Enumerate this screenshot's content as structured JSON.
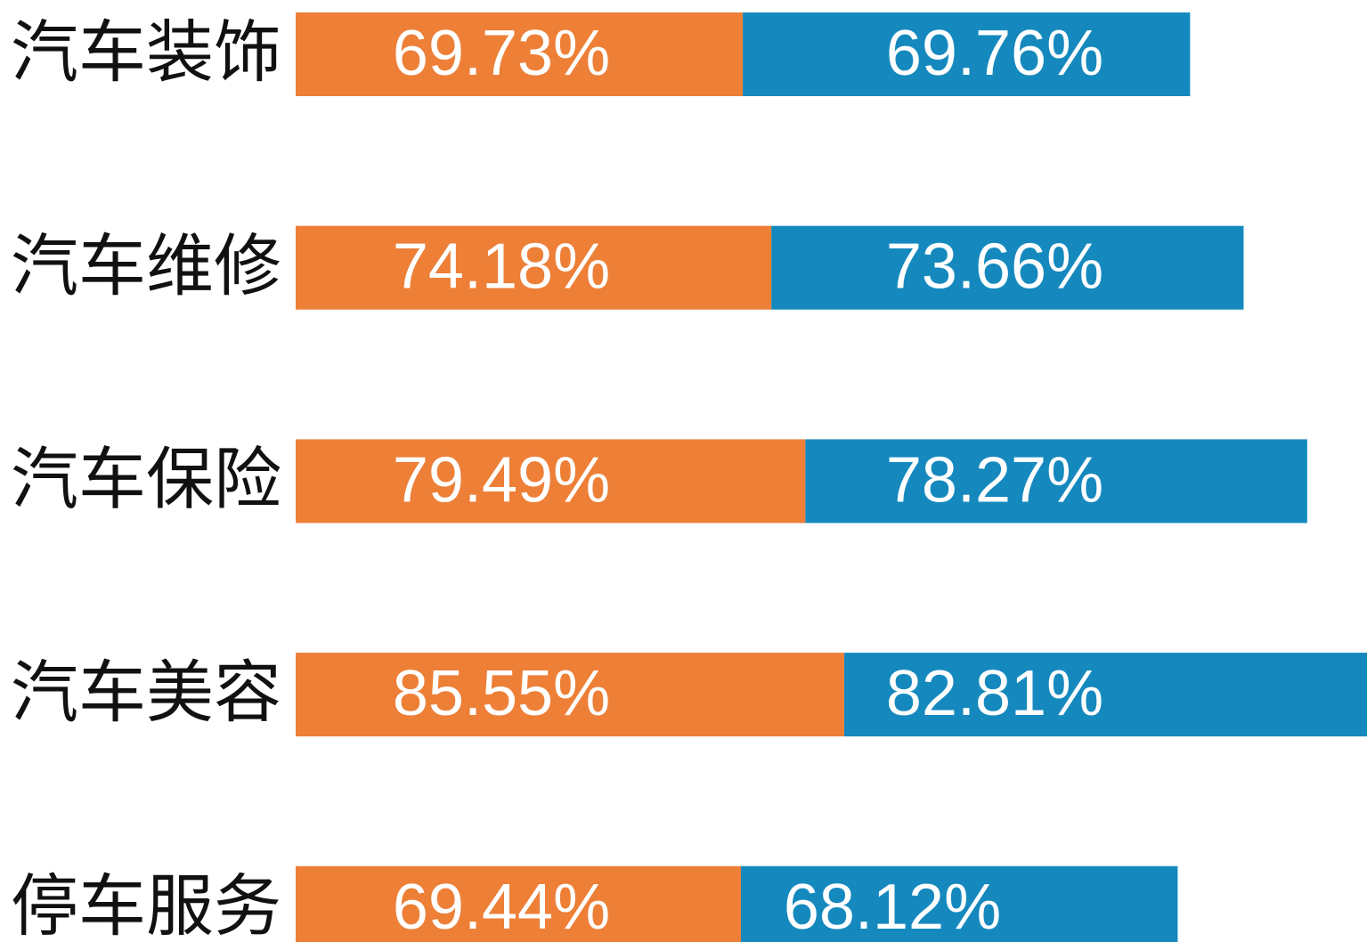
{
  "chart_data": {
    "type": "stacked-bar-horizontal",
    "categories": [
      "汽车装饰",
      "汽车维修",
      "汽车保险",
      "汽车美容",
      "停车服务"
    ],
    "series": [
      {
        "color": "#ED7F37",
        "values": [
          69.73,
          74.18,
          79.49,
          85.55,
          69.44
        ],
        "value_labels": [
          "69.73%",
          "74.18%",
          "79.49%",
          "85.55%",
          "69.44%"
        ]
      },
      {
        "color": "#1589BE",
        "values": [
          69.76,
          73.66,
          78.27,
          82.81,
          68.12
        ],
        "value_labels": [
          "69.76%",
          "73.66%",
          "78.27%",
          "82.81%",
          "68.12%"
        ]
      }
    ]
  }
}
